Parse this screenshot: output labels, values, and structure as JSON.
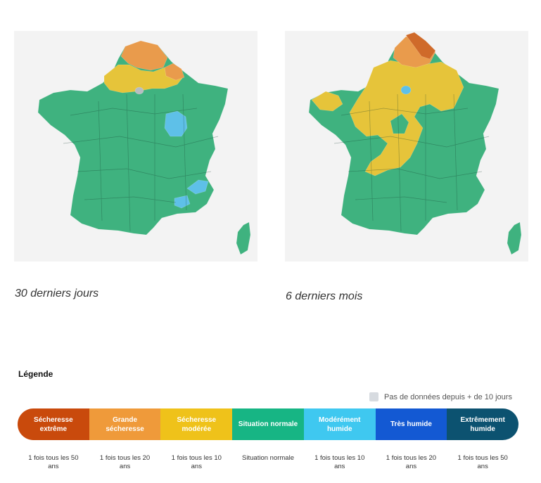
{
  "maps": [
    {
      "caption": "30 derniers jours",
      "regions": {
        "north": "#e99b4c",
        "band": "#e6c43a",
        "paris": "#b7bdc2",
        "centre": "#5ec0e8",
        "alps": "#5ec0e8",
        "rest": "#3fb27f"
      }
    },
    {
      "caption": "6 derniers mois",
      "regions": {
        "north_tip": "#cf6a2a",
        "north": "#e99b4c",
        "band": "#e6c43a",
        "brittany": "#e6c43a",
        "paris": "#5ec0e8",
        "rest": "#3fb27f"
      }
    }
  ],
  "legend": {
    "title": "Légende",
    "no_data_label": "Pas de données depuis + de 10 jours",
    "no_data_color": "#d7dbe0",
    "items": [
      {
        "label": "Sécheresse extrême",
        "color": "#c94a0c",
        "frequency": "1 fois tous les 50 ans"
      },
      {
        "label": "Grande sécheresse",
        "color": "#ef9a3a",
        "frequency": "1 fois tous les 20 ans"
      },
      {
        "label": "Sécheresse modérée",
        "color": "#efc21a",
        "frequency": "1 fois tous les 10 ans"
      },
      {
        "label": "Situation normale",
        "color": "#17b584",
        "frequency": "Situation normale"
      },
      {
        "label": "Modérément humide",
        "color": "#3fc8f0",
        "frequency": "1 fois tous les 10 ans"
      },
      {
        "label": "Très humide",
        "color": "#1359d3",
        "frequency": "1 fois tous les 20 ans"
      },
      {
        "label": "Extrêmement humide",
        "color": "#0c5270",
        "frequency": "1 fois tous les 50 ans"
      }
    ]
  }
}
